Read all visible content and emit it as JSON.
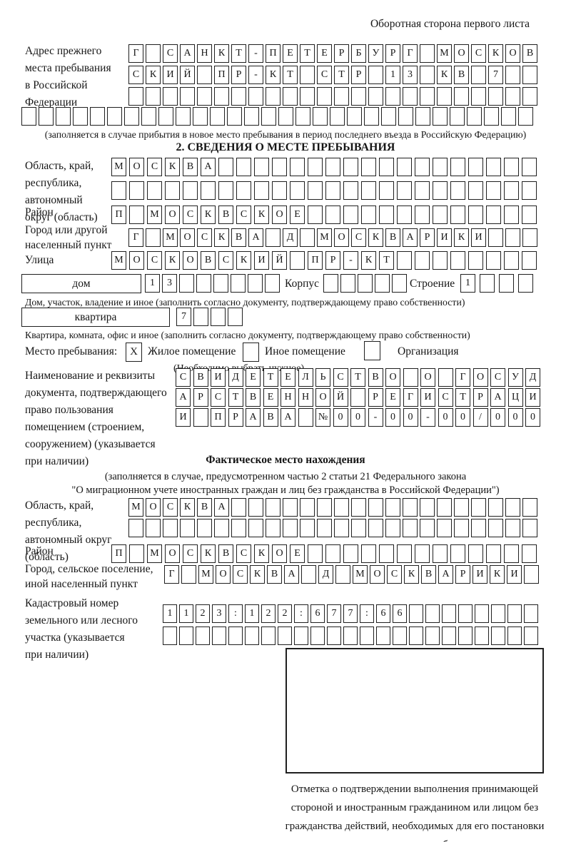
{
  "page": {
    "header_note": "Оборотная сторона первого листа"
  },
  "prev_address": {
    "label": "Адрес прежнего\nместа пребывания\nв Российской\nФедерации",
    "rows": [
      [
        "Г",
        "",
        "С",
        "А",
        "Н",
        "К",
        "Т",
        "-",
        "П",
        "Е",
        "Т",
        "Е",
        "Р",
        "Б",
        "У",
        "Р",
        "Г",
        "",
        "М",
        "О",
        "С",
        "К",
        "О",
        "В"
      ],
      [
        "С",
        "К",
        "И",
        "Й",
        "",
        "П",
        "Р",
        "-",
        "К",
        "Т",
        "",
        "С",
        "Т",
        "Р",
        "",
        "1",
        "3",
        "",
        "К",
        "В",
        "",
        "7",
        "",
        ""
      ],
      [
        "",
        "",
        "",
        "",
        "",
        "",
        "",
        "",
        "",
        "",
        "",
        "",
        "",
        "",
        "",
        "",
        "",
        "",
        "",
        "",
        "",
        "",
        "",
        ""
      ],
      [
        "",
        "",
        "",
        "",
        "",
        "",
        "",
        "",
        "",
        "",
        "",
        "",
        "",
        "",
        "",
        "",
        "",
        "",
        "",
        "",
        "",
        "",
        "",
        "",
        "",
        "",
        "",
        "",
        "",
        ""
      ]
    ],
    "note": "(заполняется в случае прибытия в новое место пребывания в период последнего въезда в Российскую Федерацию)"
  },
  "section2": {
    "title": "2. СВЕДЕНИЯ О МЕСТЕ ПРЕБЫВАНИЯ",
    "region": {
      "label": "Область, край,\nреспублика,\nавтономный\nокруг (область)",
      "rows": [
        [
          "М",
          "О",
          "С",
          "К",
          "В",
          "А",
          "",
          "",
          "",
          "",
          "",
          "",
          "",
          "",
          "",
          "",
          "",
          "",
          "",
          "",
          "",
          "",
          "",
          ""
        ],
        [
          "",
          "",
          "",
          "",
          "",
          "",
          "",
          "",
          "",
          "",
          "",
          "",
          "",
          "",
          "",
          "",
          "",
          "",
          "",
          "",
          "",
          "",
          "",
          ""
        ]
      ]
    },
    "district": {
      "label": "Район",
      "cells": [
        "П",
        "",
        "М",
        "О",
        "С",
        "К",
        "В",
        "С",
        "К",
        "О",
        "Е",
        "",
        "",
        "",
        "",
        "",
        "",
        "",
        "",
        "",
        "",
        "",
        "",
        ""
      ]
    },
    "city": {
      "label": "Город или другой\nнаселенный пункт",
      "cells": [
        "Г",
        "",
        "М",
        "О",
        "С",
        "К",
        "В",
        "А",
        "",
        "Д",
        "",
        "М",
        "О",
        "С",
        "К",
        "В",
        "А",
        "Р",
        "И",
        "К",
        "И",
        "",
        "",
        ""
      ]
    },
    "street": {
      "label": "Улица",
      "cells": [
        "М",
        "О",
        "С",
        "К",
        "О",
        "В",
        "С",
        "К",
        "И",
        "Й",
        "",
        "П",
        "Р",
        "-",
        "К",
        "Т",
        "",
        "",
        "",
        "",
        "",
        "",
        "",
        ""
      ]
    },
    "house": {
      "box_label": "дом",
      "cells": [
        "1",
        "3",
        "",
        "",
        "",
        "",
        "",
        ""
      ],
      "korpus_label": "Корпус",
      "korpus_cells": [
        "",
        "",
        "",
        "",
        ""
      ],
      "stroenie_label": "Строение",
      "stroenie_cells": [
        "1",
        "",
        "",
        ""
      ]
    },
    "house_note": "Дом, участок, владение и иное (заполнить согласно документу, подтверждающему право собственности)",
    "apartment": {
      "box_label": "квартира",
      "cells": [
        "7",
        "",
        "",
        ""
      ]
    },
    "apartment_note": "Квартира, комната, офис и иное (заполнить согласно документу, подтверждающему право собственности)",
    "stay_type": {
      "label": "Место пребывания:",
      "note": "(Необходимо выбрать нужное)",
      "options": [
        {
          "label": "Жилое помещение",
          "mark": "X"
        },
        {
          "label": "Иное помещение",
          "mark": ""
        },
        {
          "label": "Организация",
          "mark": ""
        }
      ]
    },
    "document": {
      "label": "Наименование и реквизиты\nдокумента, подтверждающего\nправо пользования\nпомещением (строением,\nсооружением) (указывается\nпри наличии)",
      "rows": [
        [
          "С",
          "В",
          "И",
          "Д",
          "Е",
          "Т",
          "Е",
          "Л",
          "Ь",
          "С",
          "Т",
          "В",
          "О",
          "",
          "О",
          "",
          "Г",
          "О",
          "С",
          "У",
          "Д"
        ],
        [
          "А",
          "Р",
          "С",
          "Т",
          "В",
          "Е",
          "Н",
          "Н",
          "О",
          "Й",
          "",
          "Р",
          "Е",
          "Г",
          "И",
          "С",
          "Т",
          "Р",
          "А",
          "Ц",
          "И"
        ],
        [
          "И",
          "",
          "П",
          "Р",
          "А",
          "В",
          "А",
          "",
          "№",
          "0",
          "0",
          "-",
          "0",
          "0",
          "-",
          "0",
          "0",
          "/",
          "0",
          "0",
          "0"
        ]
      ]
    }
  },
  "actual_location": {
    "title": "Фактическое место нахождения",
    "note_line1": "(заполняется в случае, предусмотренном частью 2 статьи 21 Федерального закона",
    "note_line2": "\"О миграционном учете иностранных граждан и лиц без гражданства в Российской Федерации\")",
    "region": {
      "label": "Область, край,\nреспублика,\nавтономный округ\n(область)",
      "rows": [
        [
          "М",
          "О",
          "С",
          "К",
          "В",
          "А",
          "",
          "",
          "",
          "",
          "",
          "",
          "",
          "",
          "",
          "",
          "",
          "",
          "",
          "",
          "",
          "",
          "",
          ""
        ],
        [
          "",
          "",
          "",
          "",
          "",
          "",
          "",
          "",
          "",
          "",
          "",
          "",
          "",
          "",
          "",
          "",
          "",
          "",
          "",
          "",
          "",
          "",
          "",
          ""
        ]
      ]
    },
    "district": {
      "label": "Район",
      "cells": [
        "П",
        "",
        "М",
        "О",
        "С",
        "К",
        "В",
        "С",
        "К",
        "О",
        "Е",
        "",
        "",
        "",
        "",
        "",
        "",
        "",
        "",
        "",
        "",
        "",
        "",
        ""
      ]
    },
    "city": {
      "label": "Город, сельское поселение,\nиной населенный пункт",
      "cells": [
        "Г",
        "",
        "М",
        "О",
        "С",
        "К",
        "В",
        "А",
        "",
        "Д",
        "",
        "М",
        "О",
        "С",
        "К",
        "В",
        "А",
        "Р",
        "И",
        "К",
        "И",
        ""
      ]
    },
    "cadastral": {
      "label": "Кадастровый номер\nземельного или лесного\nучастка (указывается\nпри наличии)",
      "rows": [
        [
          "1",
          "1",
          "2",
          "3",
          ":",
          "1",
          "2",
          "2",
          ":",
          "6",
          "7",
          "7",
          ":",
          "6",
          "6",
          "",
          "",
          "",
          "",
          "",
          "",
          "",
          ""
        ],
        [
          "",
          "",
          "",
          "",
          "",
          "",
          "",
          "",
          "",
          "",
          "",
          "",
          "",
          "",
          "",
          "",
          "",
          "",
          "",
          "",
          "",
          "",
          ""
        ]
      ]
    },
    "stamp_note": "Отметка о подтверждении выполнения принимающей\nстороной и иностранным гражданином или лицом без\nгражданства действий, необходимых для его постановки\nна учет по месту пребывания"
  }
}
